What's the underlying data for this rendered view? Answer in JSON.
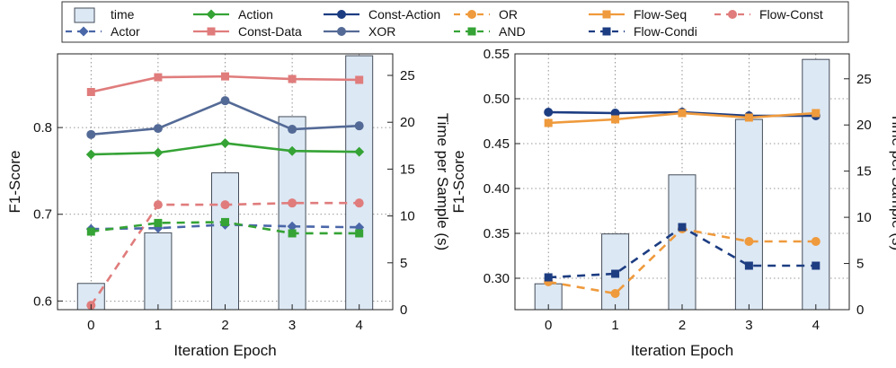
{
  "colors": {
    "time": "#dce8f4",
    "time_edge": "#444c58",
    "Action": "#35a335",
    "Const-Action": "#1d3d82",
    "OR": "#ef9a3c",
    "Flow-Seq": "#ef9a3c",
    "Flow-Const": "#e07c7c",
    "Actor": "#4a67a8",
    "Const-Data": "#e07c7c",
    "XOR": "#546a96",
    "AND": "#35a335",
    "Flow-Condi": "#1d3d82"
  },
  "legend": {
    "row1": [
      "time",
      "Action",
      "Const-Action",
      "OR",
      "Flow-Seq",
      "Flow-Const"
    ],
    "row2": [
      "Actor",
      "Const-Data",
      "XOR",
      "AND",
      "Flow-Condi"
    ]
  },
  "chart_data": [
    {
      "type": "line",
      "xlabel": "Iteration Epoch",
      "ylabel": "F1-Score",
      "y2label": "Time per Sample (s)",
      "categories": [
        "0",
        "1",
        "2",
        "3",
        "4"
      ],
      "ylim": [
        0.59,
        0.885
      ],
      "yticks": [
        "0.6",
        "0.7",
        "0.8"
      ],
      "y2lim": [
        0,
        27.3
      ],
      "y2ticks": [
        "0",
        "5",
        "10",
        "15",
        "20",
        "25"
      ],
      "bars": {
        "name": "time",
        "values": [
          2.8,
          8.2,
          14.6,
          20.6,
          27.1
        ]
      },
      "series": [
        {
          "name": "Const-Data",
          "style": "solid",
          "marker": "square",
          "values": [
            0.841,
            0.858,
            0.859,
            0.856,
            0.855
          ]
        },
        {
          "name": "XOR",
          "style": "solid",
          "marker": "circle",
          "values": [
            0.792,
            0.799,
            0.831,
            0.798,
            0.802
          ]
        },
        {
          "name": "Action",
          "style": "solid",
          "marker": "diamond",
          "values": [
            0.769,
            0.771,
            0.782,
            0.773,
            0.772
          ]
        },
        {
          "name": "Flow-Const",
          "style": "dashed",
          "marker": "circle",
          "values": [
            0.595,
            0.711,
            0.711,
            0.713,
            0.713
          ]
        },
        {
          "name": "Actor",
          "style": "dashed",
          "marker": "diamond",
          "values": [
            0.683,
            0.684,
            0.688,
            0.686,
            0.685
          ]
        },
        {
          "name": "AND",
          "style": "dashed",
          "marker": "square",
          "values": [
            0.68,
            0.69,
            0.691,
            0.678,
            0.678
          ]
        }
      ]
    },
    {
      "type": "line",
      "xlabel": "Iteration Epoch",
      "ylabel": "F1-Score",
      "y2label": "Time per Sample (s)",
      "categories": [
        "0",
        "1",
        "2",
        "3",
        "4"
      ],
      "ylim": [
        0.265,
        0.55
      ],
      "yticks": [
        "0.30",
        "0.35",
        "0.40",
        "0.45",
        "0.50",
        "0.55"
      ],
      "y2lim": [
        0,
        27.7
      ],
      "y2ticks": [
        "0",
        "5",
        "10",
        "15",
        "20",
        "25"
      ],
      "bars": {
        "name": "time",
        "values": [
          2.8,
          8.2,
          14.6,
          20.6,
          27.1
        ]
      },
      "series": [
        {
          "name": "Const-Action",
          "style": "solid",
          "marker": "circle",
          "values": [
            0.485,
            0.484,
            0.485,
            0.481,
            0.481
          ]
        },
        {
          "name": "Flow-Seq",
          "style": "solid",
          "marker": "square",
          "values": [
            0.473,
            0.477,
            0.484,
            0.479,
            0.484
          ]
        },
        {
          "name": "OR",
          "style": "dashed",
          "marker": "circle",
          "values": [
            0.296,
            0.283,
            0.355,
            0.341,
            0.341
          ]
        },
        {
          "name": "Flow-Condi",
          "style": "dashed",
          "marker": "square",
          "values": [
            0.301,
            0.305,
            0.357,
            0.314,
            0.314
          ]
        }
      ]
    }
  ]
}
